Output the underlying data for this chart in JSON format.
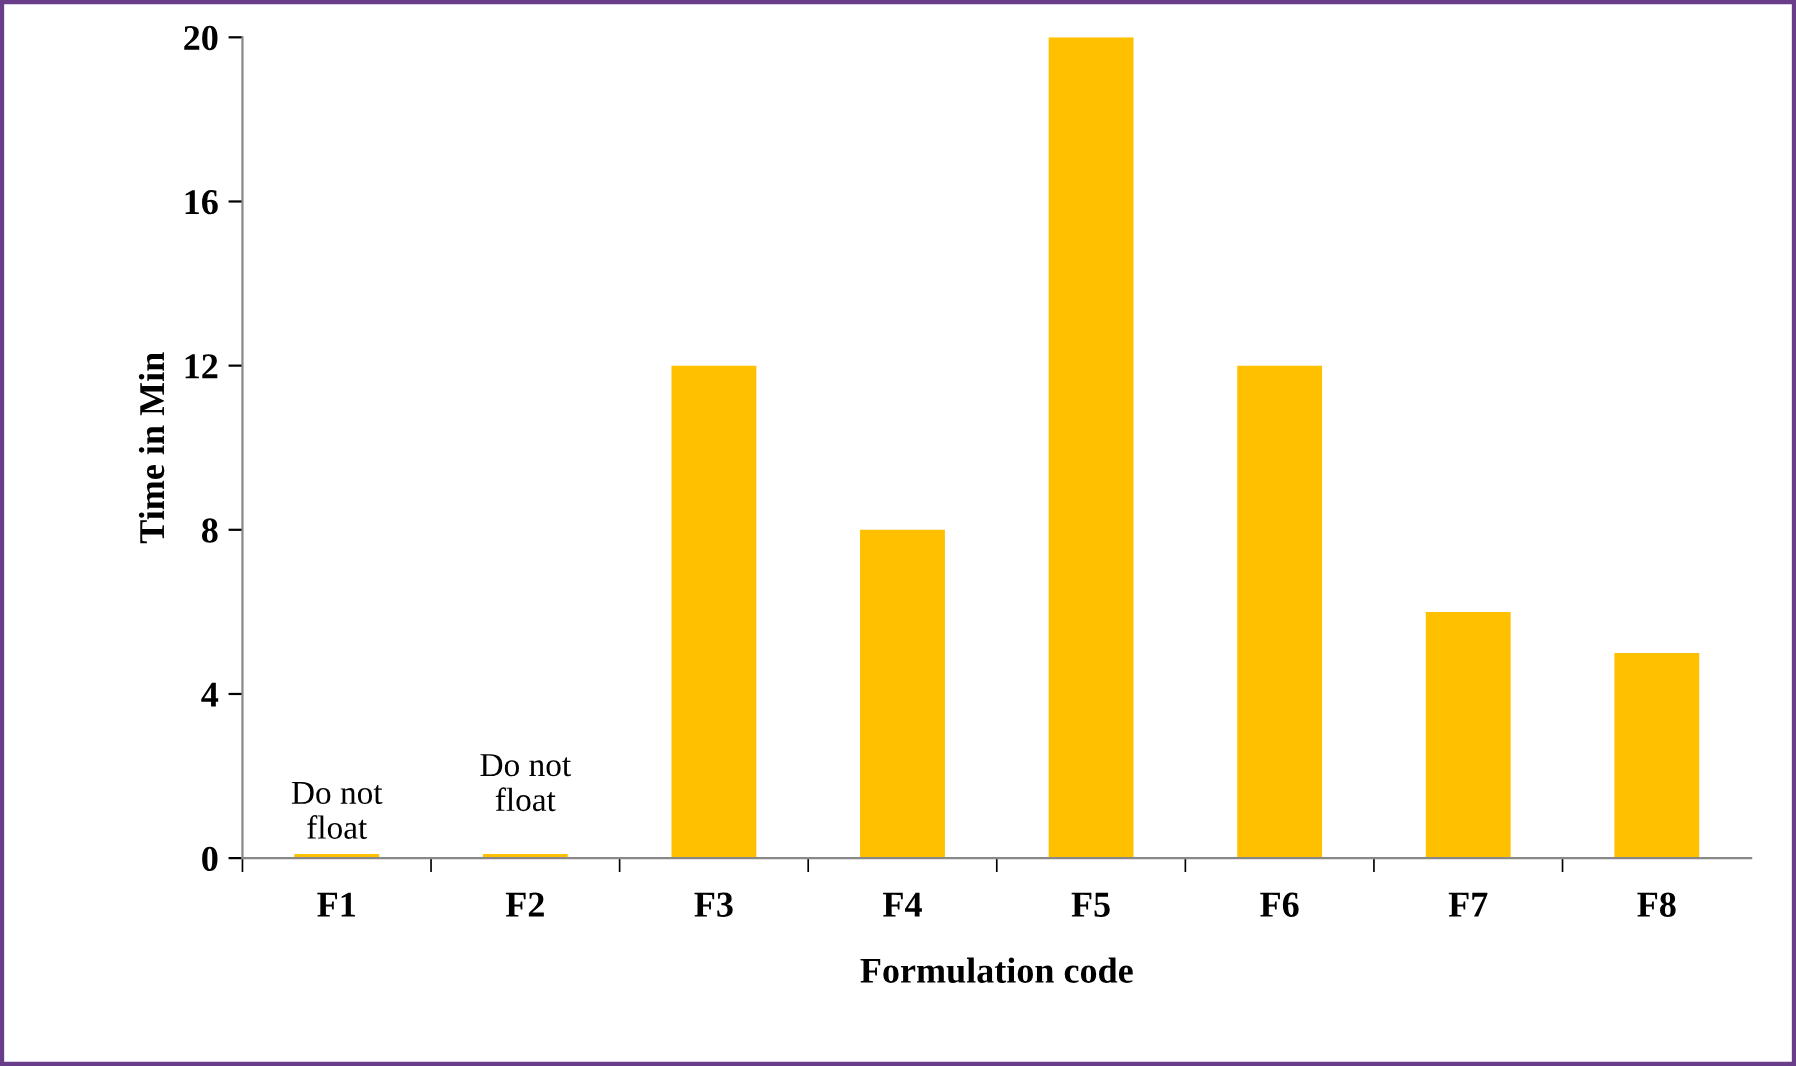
{
  "chart_data": {
    "type": "bar",
    "xlabel": "Formulation code",
    "ylabel": "Time in Min",
    "categories": [
      "F1",
      "F2",
      "F3",
      "F4",
      "F5",
      "F6",
      "F7",
      "F8"
    ],
    "values": [
      0.1,
      0.1,
      12,
      8,
      20,
      12,
      6,
      5
    ],
    "color": "#ffc000",
    "ylim": [
      0,
      20
    ],
    "yticks": [
      0,
      4,
      8,
      12,
      16,
      20
    ],
    "grid": false,
    "annotations": [
      {
        "text": "Do not\nfloat",
        "x": "F1",
        "y": 0.1
      },
      {
        "text": "Do not\nfloat",
        "x": "F2",
        "y": 0.1
      }
    ]
  }
}
